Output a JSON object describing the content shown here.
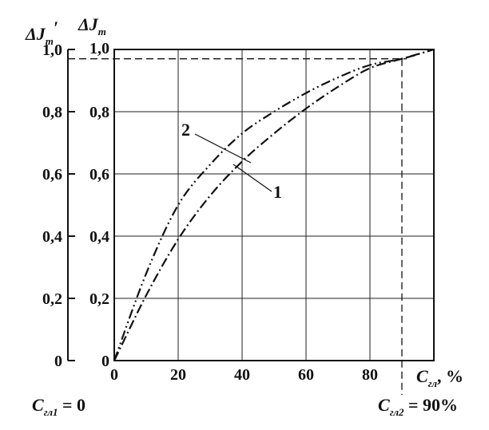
{
  "chart_data": {
    "type": "line",
    "x": [
      0,
      10,
      20,
      30,
      40,
      50,
      60,
      70,
      80,
      90,
      100
    ],
    "xlim": [
      0,
      100
    ],
    "ylim": [
      0,
      1.0
    ],
    "x_ticks": [
      "0",
      "20",
      "40",
      "60",
      "80"
    ],
    "y_ticks_inner": [
      "0",
      "0,2",
      "0,4",
      "0,6",
      "0,8",
      "1,0"
    ],
    "y_ticks_outer": [
      "0",
      "0,2",
      "0,4",
      "0,6",
      "0,8",
      "1,0"
    ],
    "xlabel": {
      "main": "C",
      "sub": "гл",
      "suffix": ", %"
    },
    "ylabel_inner": {
      "main": "ΔJ",
      "sub": "т"
    },
    "ylabel_outer": {
      "main": "ΔJ",
      "sub": "т",
      "prime": "′"
    },
    "series": [
      {
        "name": "1",
        "values": [
          0,
          0.21,
          0.39,
          0.53,
          0.64,
          0.73,
          0.81,
          0.88,
          0.94,
          0.97,
          1.0
        ]
      },
      {
        "name": "2",
        "values": [
          0,
          0.28,
          0.5,
          0.63,
          0.73,
          0.8,
          0.86,
          0.91,
          0.95,
          0.97,
          1.0
        ]
      }
    ],
    "reference_x": 90,
    "reference_y": 0.97,
    "notes": [
      {
        "main": "C",
        "sub": "гл1",
        "rest": " = 0"
      },
      {
        "main": "C",
        "sub": "гл2",
        "rest": " = 90%"
      }
    ],
    "grid": true
  }
}
